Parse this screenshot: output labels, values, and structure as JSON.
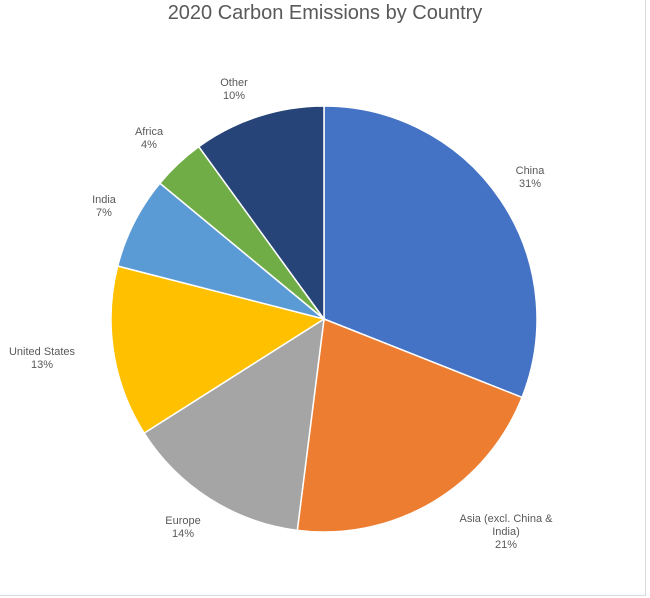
{
  "chart_data": {
    "type": "pie",
    "title": "2020 Carbon Emissions by Country",
    "categories": [
      "China",
      "Asia (excl. China & India)",
      "Europe",
      "United States",
      "India",
      "Africa",
      "Other"
    ],
    "values": [
      31,
      21,
      14,
      13,
      7,
      4,
      10
    ],
    "labels": [
      [
        "China",
        "31%"
      ],
      [
        "Asia (excl. China &",
        "India)",
        "21%"
      ],
      [
        "Europe",
        "14%"
      ],
      [
        "United States",
        "13%"
      ],
      [
        "India",
        "7%"
      ],
      [
        "Africa",
        "4%"
      ],
      [
        "Other",
        "10%"
      ]
    ],
    "colors": [
      "#4472c4",
      "#ed7d31",
      "#a5a5a5",
      "#ffc000",
      "#5b9bd5",
      "#70ad47",
      "#264478"
    ],
    "legend": "none",
    "start_angle": "12 o'clock, clockwise"
  }
}
